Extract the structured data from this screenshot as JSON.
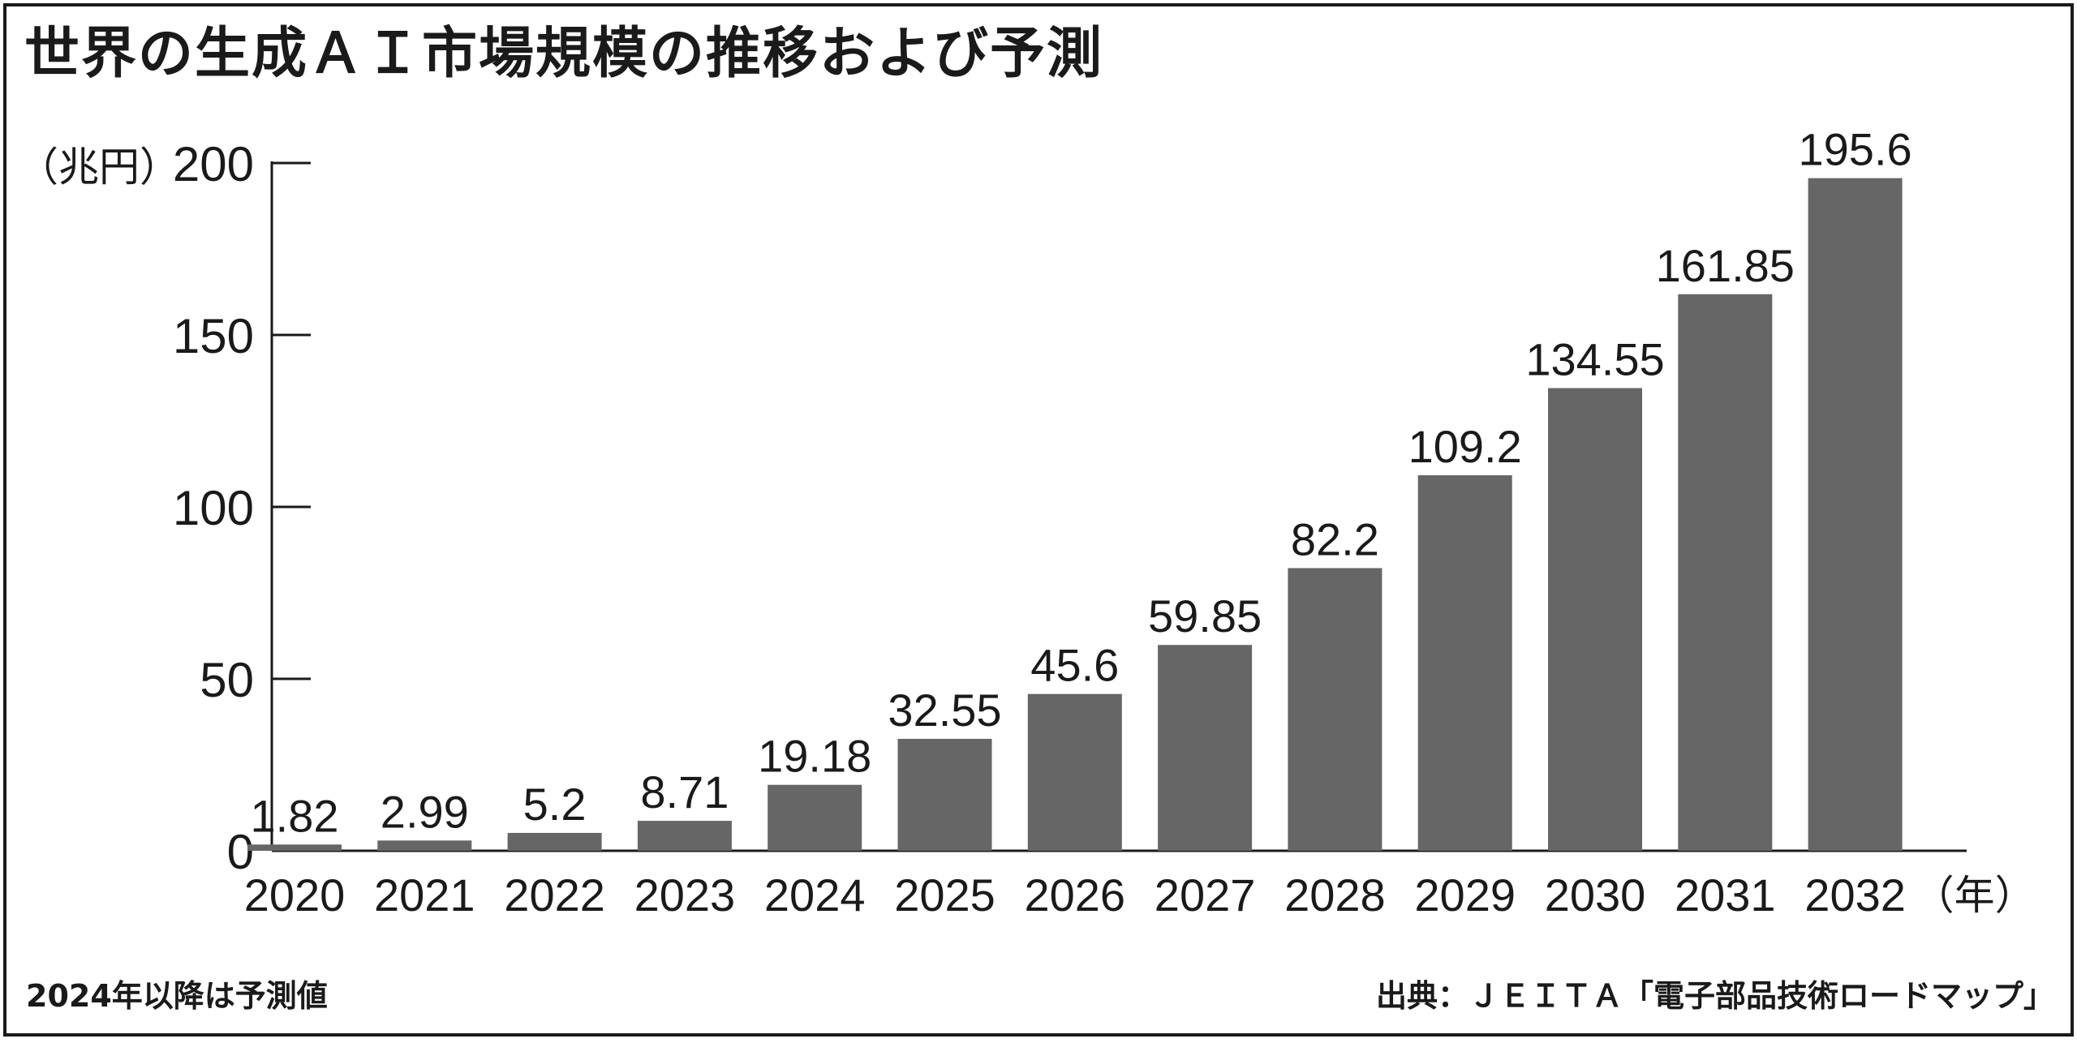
{
  "footnote": "2024年以降は予測値",
  "source": "出典：ＪＥＩＴＡ「電子部品技術ロードマップ」",
  "chart_data": {
    "type": "bar",
    "title": "世界の生成ＡＩ市場規模の推移および予測",
    "y_unit": "（兆円）",
    "x_unit": "（年）",
    "categories": [
      "2020",
      "2021",
      "2022",
      "2023",
      "2024",
      "2025",
      "2026",
      "2027",
      "2028",
      "2029",
      "2030",
      "2031",
      "2032"
    ],
    "values": [
      1.82,
      2.99,
      5.2,
      8.71,
      19.18,
      32.55,
      45.6,
      59.85,
      82.2,
      109.2,
      134.55,
      161.85,
      195.6
    ],
    "value_labels": [
      "1.82",
      "2.99",
      "5.2",
      "8.71",
      "19.18",
      "32.55",
      "45.6",
      "59.85",
      "82.2",
      "109.2",
      "134.55",
      "161.85",
      "195.6"
    ],
    "ylim": [
      0,
      200
    ],
    "yticks": [
      0,
      50,
      100,
      150,
      200
    ],
    "grid": false,
    "legend": "none",
    "bar_color": "#666666"
  }
}
